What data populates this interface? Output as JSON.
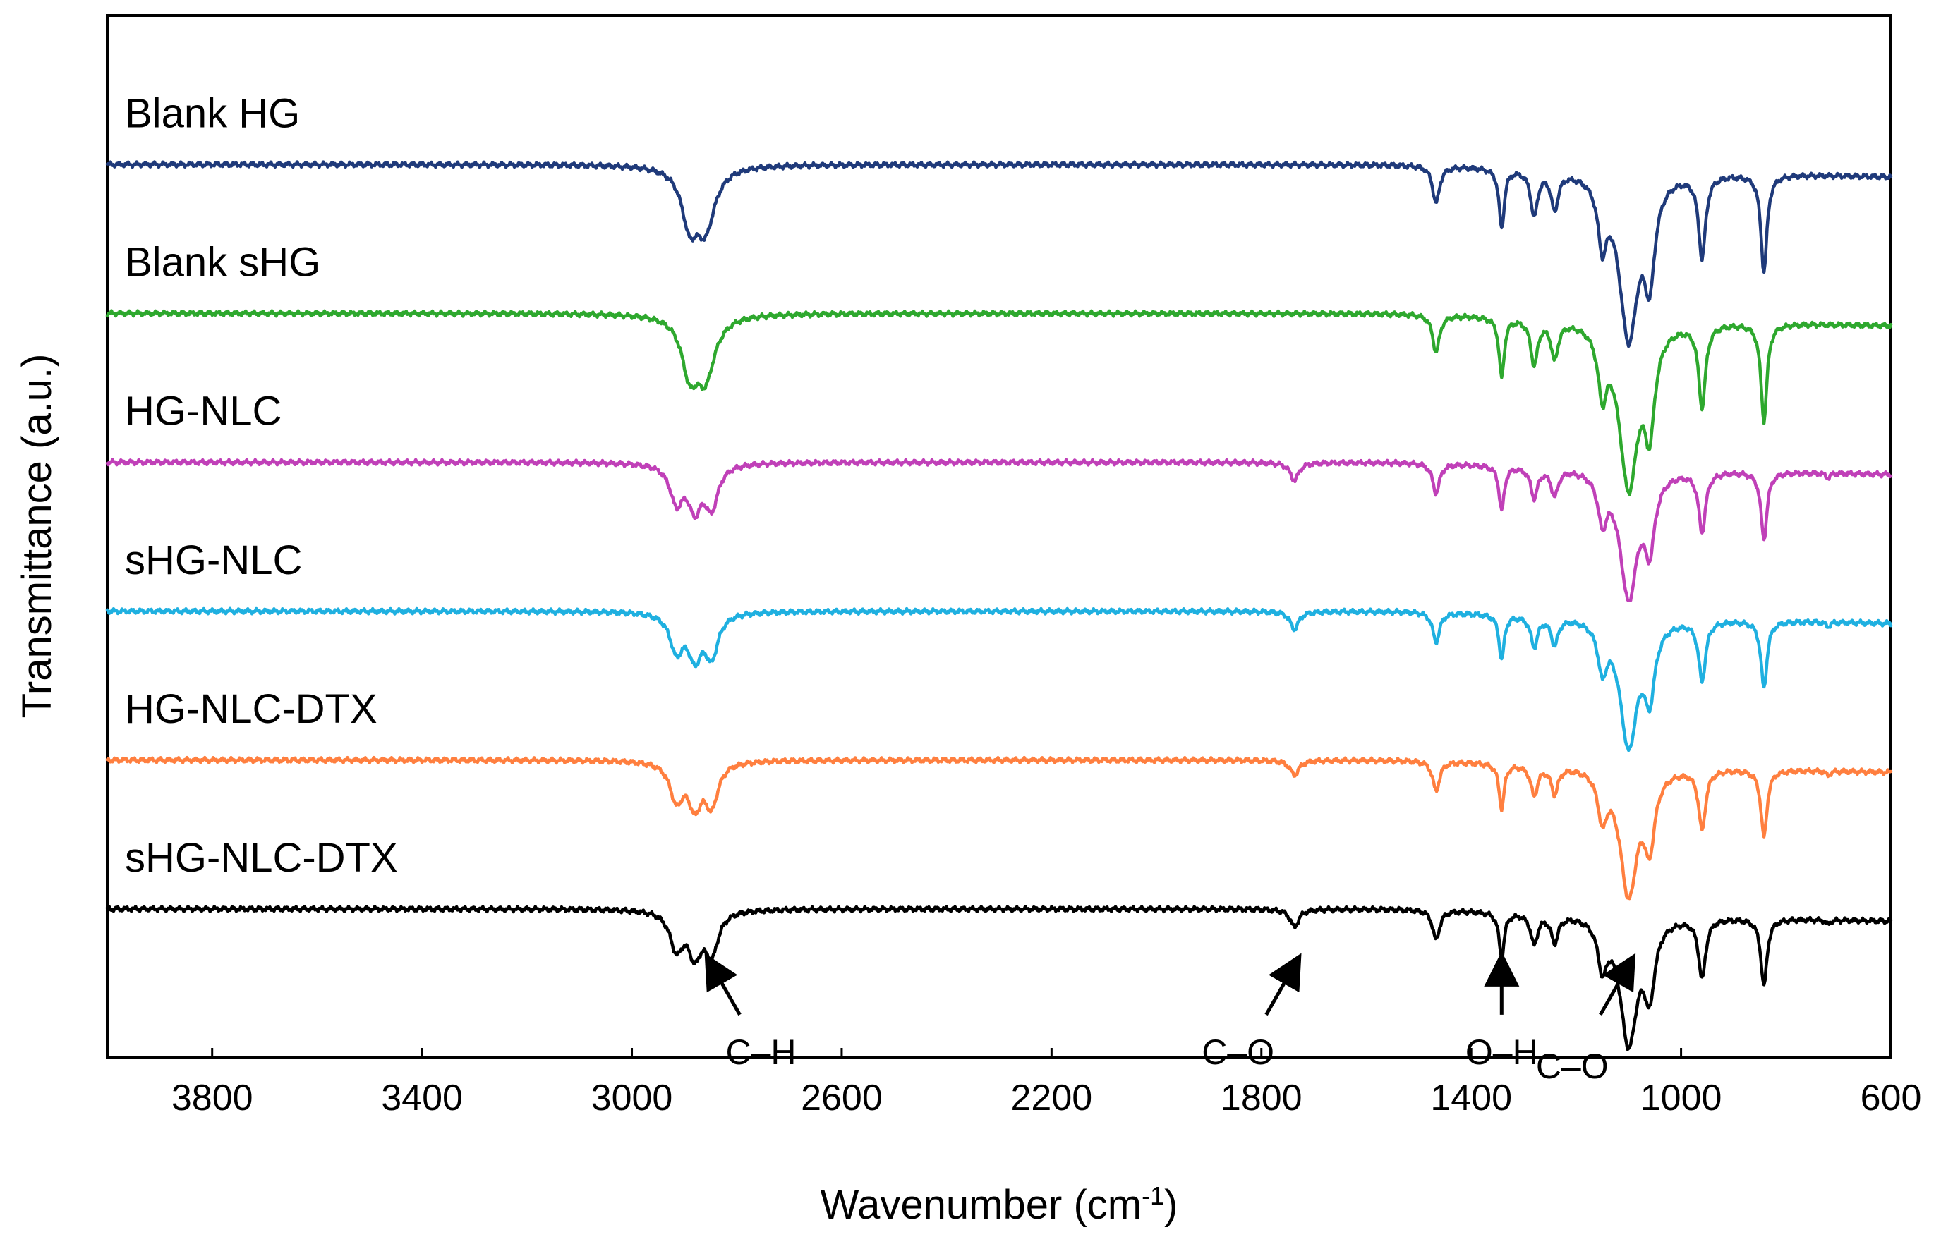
{
  "chart_data": {
    "type": "line",
    "title": "",
    "xlabel": "Wavenumber (cm",
    "xlabel_sup": "-1",
    "xlabel_close": ")",
    "ylabel": "Transmittance (a.u.)",
    "xlim": [
      4000,
      600
    ],
    "x_reversed": true,
    "x_ticks": [
      3800,
      3400,
      3000,
      2600,
      2200,
      1800,
      1400,
      1000,
      600
    ],
    "y_ticks": [],
    "grid": false,
    "legend": "inline labels above each trace",
    "series": [
      {
        "name": "Blank HG",
        "color": "#1f3a7a",
        "baseline": 6.0,
        "peaks": [
          [
            2890,
            0.35,
            18
          ],
          [
            2860,
            0.4,
            22
          ],
          [
            1467,
            0.25,
            8
          ],
          [
            1342,
            0.4,
            6
          ],
          [
            1280,
            0.3,
            8
          ],
          [
            1241,
            0.25,
            8
          ],
          [
            1150,
            0.4,
            10
          ],
          [
            1100,
            1.1,
            22
          ],
          [
            1060,
            0.6,
            12
          ],
          [
            960,
            0.55,
            8
          ],
          [
            842,
            0.65,
            7
          ]
        ],
        "label_y": 6.25
      },
      {
        "name": "Blank sHG",
        "color": "#2ea82e",
        "baseline": 5.0,
        "peaks": [
          [
            2890,
            0.35,
            18
          ],
          [
            2860,
            0.4,
            22
          ],
          [
            1467,
            0.25,
            8
          ],
          [
            1342,
            0.4,
            6
          ],
          [
            1280,
            0.3,
            8
          ],
          [
            1241,
            0.25,
            8
          ],
          [
            1150,
            0.4,
            10
          ],
          [
            1100,
            1.1,
            22
          ],
          [
            1060,
            0.6,
            12
          ],
          [
            960,
            0.55,
            8
          ],
          [
            842,
            0.65,
            7
          ]
        ],
        "label_y": 5.25
      },
      {
        "name": "HG-NLC",
        "color": "#c040b8",
        "baseline": 4.0,
        "peaks": [
          [
            2915,
            0.25,
            15
          ],
          [
            2880,
            0.28,
            15
          ],
          [
            2848,
            0.28,
            15
          ],
          [
            1737,
            0.12,
            10
          ],
          [
            1467,
            0.2,
            8
          ],
          [
            1342,
            0.3,
            6
          ],
          [
            1280,
            0.2,
            8
          ],
          [
            1241,
            0.18,
            8
          ],
          [
            1150,
            0.3,
            10
          ],
          [
            1100,
            0.85,
            20
          ],
          [
            1060,
            0.45,
            12
          ],
          [
            960,
            0.4,
            8
          ],
          [
            842,
            0.45,
            7
          ],
          [
            720,
            0.03,
            5
          ]
        ],
        "label_y": 4.25
      },
      {
        "name": "sHG-NLC",
        "color": "#1fb0e0",
        "baseline": 3.0,
        "peaks": [
          [
            2915,
            0.25,
            15
          ],
          [
            2880,
            0.28,
            15
          ],
          [
            2848,
            0.28,
            15
          ],
          [
            1737,
            0.12,
            10
          ],
          [
            1467,
            0.2,
            8
          ],
          [
            1342,
            0.3,
            6
          ],
          [
            1280,
            0.2,
            8
          ],
          [
            1241,
            0.18,
            8
          ],
          [
            1150,
            0.3,
            10
          ],
          [
            1100,
            0.85,
            20
          ],
          [
            1060,
            0.45,
            12
          ],
          [
            960,
            0.4,
            8
          ],
          [
            842,
            0.45,
            7
          ],
          [
            720,
            0.03,
            5
          ]
        ],
        "label_y": 3.25
      },
      {
        "name": "HG-NLC-DTX",
        "color": "#ff7f3f",
        "baseline": 2.0,
        "peaks": [
          [
            2915,
            0.25,
            15
          ],
          [
            2880,
            0.28,
            15
          ],
          [
            2848,
            0.28,
            15
          ],
          [
            1737,
            0.1,
            10
          ],
          [
            1467,
            0.2,
            8
          ],
          [
            1342,
            0.3,
            6
          ],
          [
            1280,
            0.2,
            8
          ],
          [
            1241,
            0.18,
            8
          ],
          [
            1150,
            0.3,
            10
          ],
          [
            1100,
            0.85,
            20
          ],
          [
            1060,
            0.45,
            12
          ],
          [
            960,
            0.4,
            8
          ],
          [
            842,
            0.45,
            7
          ],
          [
            720,
            0.03,
            5
          ]
        ],
        "label_y": 2.25
      },
      {
        "name": "sHG-NLC-DTX",
        "color": "#000000",
        "baseline": 1.0,
        "peaks": [
          [
            2915,
            0.25,
            15
          ],
          [
            2880,
            0.28,
            15
          ],
          [
            2848,
            0.28,
            15
          ],
          [
            1737,
            0.12,
            10
          ],
          [
            1467,
            0.2,
            8
          ],
          [
            1342,
            0.3,
            6
          ],
          [
            1280,
            0.2,
            8
          ],
          [
            1241,
            0.18,
            8
          ],
          [
            1150,
            0.3,
            10
          ],
          [
            1100,
            0.85,
            20
          ],
          [
            1060,
            0.45,
            12
          ],
          [
            960,
            0.4,
            8
          ],
          [
            842,
            0.45,
            7
          ],
          [
            720,
            0.03,
            5
          ]
        ],
        "label_y": 1.25
      }
    ],
    "annotations": [
      {
        "label": "C–H",
        "x": 2848
      },
      {
        "label": "C–O",
        "x": 1737
      },
      {
        "label": "O–H",
        "x": 1342
      },
      {
        "label": "C–O",
        "x": 1100
      }
    ]
  }
}
